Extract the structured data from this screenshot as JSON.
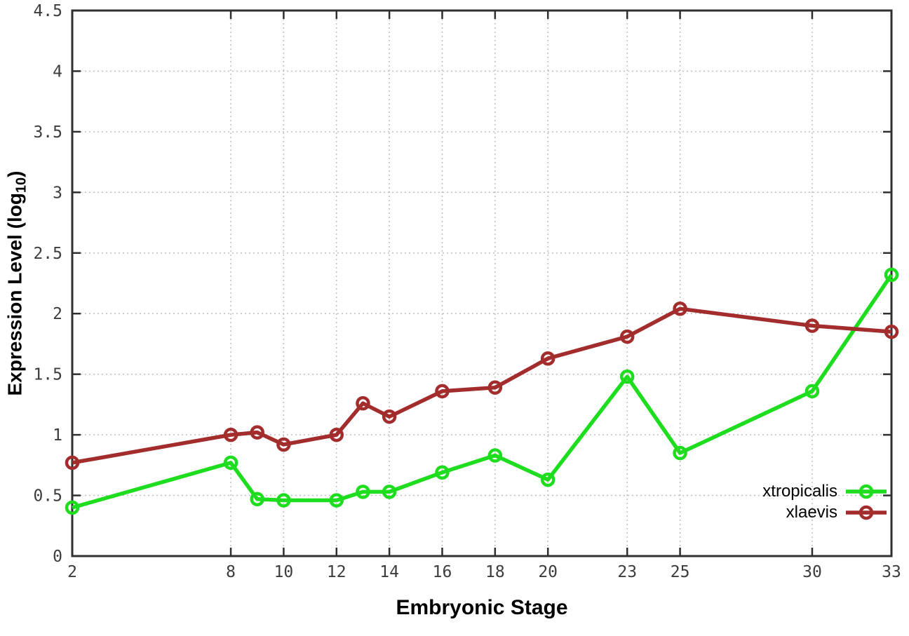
{
  "chart_data": {
    "type": "line",
    "title": "",
    "xlabel": "Embryonic Stage",
    "ylabel_prefix": "Expression Level (log",
    "ylabel_subscript": "10",
    "ylabel_suffix": ")",
    "xlim": [
      2,
      33
    ],
    "ylim": [
      0,
      4.5
    ],
    "xticks": {
      "values": [
        2,
        8,
        10,
        12,
        14,
        16,
        18,
        20,
        23,
        25,
        30,
        33
      ],
      "labels": [
        "2",
        "8",
        "10",
        "12",
        "14",
        "16",
        "18",
        "20",
        "23",
        "25",
        "30",
        "33"
      ]
    },
    "yticks": {
      "values": [
        0,
        0.5,
        1,
        1.5,
        2,
        2.5,
        3,
        3.5,
        4,
        4.5
      ],
      "labels": [
        "0",
        "0.5",
        "1",
        "1.5",
        "2",
        "2.5",
        "3",
        "3.5",
        "4",
        "4.5"
      ]
    },
    "grid": "dotted",
    "legend_position": "inside-bottom-right",
    "series": [
      {
        "name": "xtropicalis",
        "color": "#1edc1e",
        "marker": "open-circle",
        "x": [
          2,
          8,
          9,
          10,
          12,
          13,
          14,
          16,
          18,
          20,
          23,
          25,
          30,
          33
        ],
        "y": [
          0.4,
          0.77,
          0.47,
          0.46,
          0.46,
          0.53,
          0.53,
          0.69,
          0.83,
          0.63,
          1.48,
          0.85,
          1.36,
          2.32
        ]
      },
      {
        "name": "xlaevis",
        "color": "#a32c2c",
        "marker": "open-circle",
        "x": [
          2,
          8,
          9,
          10,
          12,
          13,
          14,
          16,
          18,
          20,
          23,
          25,
          30,
          33
        ],
        "y": [
          0.77,
          1.0,
          1.02,
          0.92,
          1.0,
          1.26,
          1.15,
          1.36,
          1.39,
          1.63,
          1.81,
          2.04,
          1.9,
          1.85
        ]
      }
    ]
  }
}
